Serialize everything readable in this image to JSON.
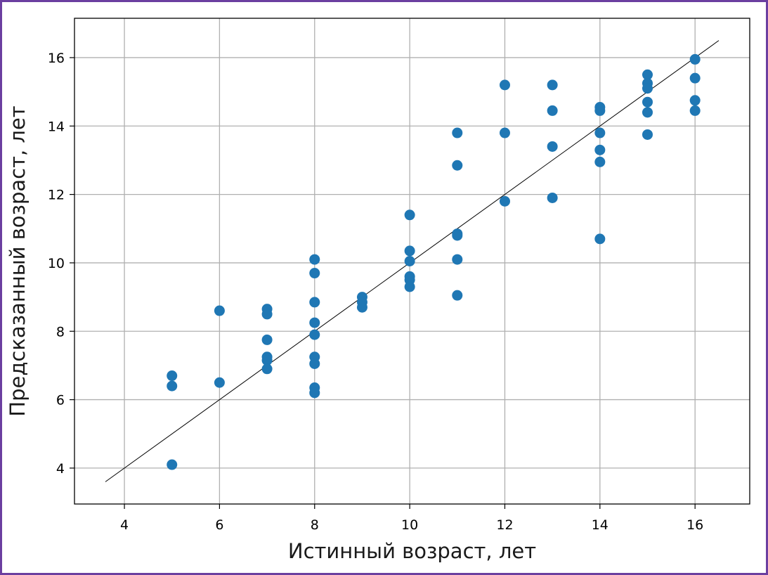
{
  "chart_data": {
    "type": "scatter",
    "xlabel": "Истинный возраст, лет",
    "ylabel": "Предсказанный возраст, лет",
    "xlim": [
      2.95,
      17.15
    ],
    "ylim": [
      2.95,
      17.15
    ],
    "x_ticks": [
      4,
      6,
      8,
      10,
      12,
      14,
      16
    ],
    "y_ticks": [
      4,
      6,
      8,
      10,
      12,
      14,
      16
    ],
    "x_tick_labels": [
      "4",
      "6",
      "8",
      "10",
      "12",
      "14",
      "16"
    ],
    "y_tick_labels": [
      "4",
      "6",
      "8",
      "10",
      "12",
      "14",
      "16"
    ],
    "grid": true,
    "point_color": "#1f77b4",
    "reference_line": {
      "x": [
        3.6,
        16.5
      ],
      "y": [
        3.6,
        16.5
      ],
      "color": "#000000"
    },
    "series": [
      {
        "points": [
          [
            5,
            6.7
          ],
          [
            5,
            6.4
          ],
          [
            5,
            4.1
          ],
          [
            6,
            8.6
          ],
          [
            6,
            6.5
          ],
          [
            7,
            8.65
          ],
          [
            7,
            8.5
          ],
          [
            7,
            7.75
          ],
          [
            7,
            7.25
          ],
          [
            7,
            7.15
          ],
          [
            7,
            6.9
          ],
          [
            8,
            10.1
          ],
          [
            8,
            9.7
          ],
          [
            8,
            8.85
          ],
          [
            8,
            8.25
          ],
          [
            8,
            7.9
          ],
          [
            8,
            7.25
          ],
          [
            8,
            7.05
          ],
          [
            8,
            6.35
          ],
          [
            8,
            6.2
          ],
          [
            9,
            9.0
          ],
          [
            9,
            8.85
          ],
          [
            9,
            8.7
          ],
          [
            10,
            11.4
          ],
          [
            10,
            10.35
          ],
          [
            10,
            10.05
          ],
          [
            10,
            9.6
          ],
          [
            10,
            9.5
          ],
          [
            10,
            9.3
          ],
          [
            11,
            13.8
          ],
          [
            11,
            12.85
          ],
          [
            11,
            10.85
          ],
          [
            11,
            10.8
          ],
          [
            11,
            10.1
          ],
          [
            11,
            9.05
          ],
          [
            12,
            15.2
          ],
          [
            12,
            13.8
          ],
          [
            12,
            11.8
          ],
          [
            13,
            15.2
          ],
          [
            13,
            14.45
          ],
          [
            13,
            13.4
          ],
          [
            13,
            11.9
          ],
          [
            14,
            14.55
          ],
          [
            14,
            14.45
          ],
          [
            14,
            13.8
          ],
          [
            14,
            13.3
          ],
          [
            14,
            12.95
          ],
          [
            14,
            10.7
          ],
          [
            15,
            15.5
          ],
          [
            15,
            15.25
          ],
          [
            15,
            15.1
          ],
          [
            15,
            14.7
          ],
          [
            15,
            14.4
          ],
          [
            15,
            13.75
          ],
          [
            16,
            15.95
          ],
          [
            16,
            15.4
          ],
          [
            16,
            14.75
          ],
          [
            16,
            14.45
          ]
        ]
      }
    ]
  }
}
